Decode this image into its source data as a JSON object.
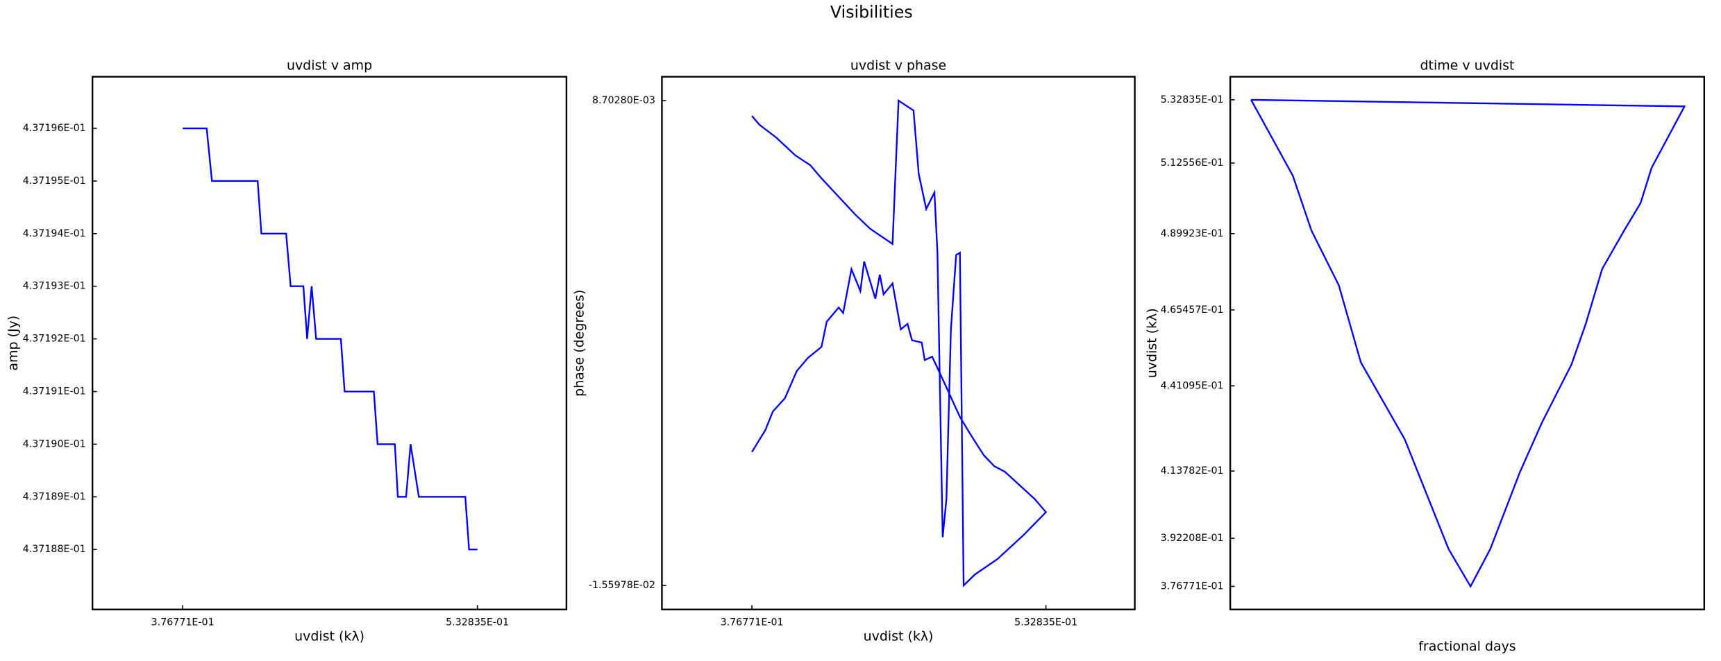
{
  "title": "Visibilities",
  "chart_data": [
    {
      "type": "line",
      "title": "uvdist v amp",
      "xlabel": "uvdist (kλ)",
      "ylabel": "amp (Jy)",
      "color": "#0000ff",
      "x": [
        0.37677,
        0.38948,
        0.39226,
        0.41647,
        0.41846,
        0.43156,
        0.43395,
        0.44069,
        0.44268,
        0.44506,
        0.44744,
        0.46054,
        0.46253,
        0.47801,
        0.47999,
        0.48912,
        0.49071,
        0.49508,
        0.49746,
        0.50183,
        0.52644,
        0.52842,
        0.53284
      ],
      "values": [
        0.437196,
        0.437196,
        0.437195,
        0.437195,
        0.437194,
        0.437194,
        0.437193,
        0.437193,
        0.437192,
        0.437193,
        0.437192,
        0.437192,
        0.437191,
        0.437191,
        0.43719,
        0.43719,
        0.437189,
        0.437189,
        0.43719,
        0.437189,
        0.437189,
        0.437188,
        0.437188
      ],
      "xlim": [
        0.329,
        0.58
      ],
      "xticks": [
        {
          "value": 0.376771,
          "label": "3.76771E-01"
        },
        {
          "value": 0.532835,
          "label": "5.32835E-01"
        }
      ],
      "ylim": [
        0.43718686,
        0.43719698
      ],
      "yticks": [
        {
          "value": 0.437188,
          "label": "4.37188E-01"
        },
        {
          "value": 0.437189,
          "label": "4.37189E-01"
        },
        {
          "value": 0.43719,
          "label": "4.37190E-01"
        },
        {
          "value": 0.437191,
          "label": "4.37191E-01"
        },
        {
          "value": 0.437192,
          "label": "4.37192E-01"
        },
        {
          "value": 0.437193,
          "label": "4.37193E-01"
        },
        {
          "value": 0.437194,
          "label": "4.37194E-01"
        },
        {
          "value": 0.437195,
          "label": "4.37195E-01"
        },
        {
          "value": 0.437196,
          "label": "4.37196E-01"
        }
      ]
    },
    {
      "type": "line",
      "title": "uvdist v phase",
      "xlabel": "uvdist (kλ)",
      "ylabel": "phase (degrees)",
      "color": "#0000ff",
      "x": [
        0.37677,
        0.38392,
        0.38789,
        0.39424,
        0.4006,
        0.40655,
        0.4137,
        0.41648,
        0.42284,
        0.42522,
        0.42959,
        0.43435,
        0.43634,
        0.44229,
        0.44467,
        0.44666,
        0.45142,
        0.45579,
        0.45937,
        0.46175,
        0.46691,
        0.4685,
        0.47247,
        0.47922,
        0.48717,
        0.49352,
        0.49987,
        0.50543,
        0.51099,
        0.52687,
        0.53284,
        0.52092,
        0.50702,
        0.49511,
        0.48915,
        0.48717,
        0.48518,
        0.4824,
        0.48002,
        0.47803,
        0.47525,
        0.47366,
        0.46929,
        0.46532,
        0.46254,
        0.4546,
        0.45142,
        0.43951,
        0.43157,
        0.4137,
        0.40774,
        0.3998,
        0.38987,
        0.38074,
        0.37677
      ],
      "values": [
        -0.008905,
        -0.007808,
        -0.006876,
        -0.006218,
        -0.004846,
        -0.004188,
        -0.003639,
        -0.002378,
        -0.001665,
        -0.001939,
        0.000255,
        -0.000842,
        0.000639,
        -0.001226,
        -1.9e-05,
        -0.001006,
        -0.000458,
        -0.002762,
        -0.002487,
        -0.00331,
        -0.00342,
        -0.004298,
        -0.004133,
        -0.005504,
        -0.00715,
        -0.008137,
        -0.00907,
        -0.009619,
        -0.009893,
        -0.011264,
        -0.011922,
        -0.013074,
        -0.014281,
        -0.015049,
        -0.015598,
        0.001078,
        0.000969,
        -0.002762,
        -0.011264,
        -0.013184,
        0.001078,
        0.004095,
        0.003272,
        0.005028,
        0.008209,
        0.0087028,
        0.001517,
        0.002285,
        0.002998,
        0.004808,
        0.005467,
        0.00596,
        0.006838,
        0.007496,
        0.007935
      ],
      "xlim": [
        0.329,
        0.58
      ],
      "xticks": [
        {
          "value": 0.376771,
          "label": "3.76771E-01"
        },
        {
          "value": 0.532835,
          "label": "5.32835E-01"
        }
      ],
      "ylim": [
        -0.0168,
        0.0099
      ],
      "yticks": [
        {
          "value": -0.0155978,
          "label": "-1.55978E-02"
        },
        {
          "value": 0.0087028,
          "label": "8.70280E-03"
        }
      ]
    },
    {
      "type": "line",
      "title": "dtime v uvdist",
      "xlabel": "fractional days",
      "ylabel": "uvdist (kλ)",
      "color": "#0000ff",
      "x": [
        0.11,
        0.189,
        0.183,
        0.181,
        0.178,
        0.174,
        0.171,
        0.1684,
        0.163,
        0.159,
        0.1536,
        0.15,
        0.146,
        0.142,
        0.138,
        0.13,
        0.126,
        0.121,
        0.1176,
        0.11
      ],
      "values": [
        0.532835,
        0.530721,
        0.510993,
        0.49972,
        0.490912,
        0.478582,
        0.460968,
        0.447933,
        0.429262,
        0.413409,
        0.388748,
        0.376771,
        0.388748,
        0.406363,
        0.423977,
        0.448638,
        0.473298,
        0.490912,
        0.508527,
        0.532835
      ],
      "xlim": [
        0.1062,
        0.1926
      ],
      "ylim": [
        0.369371,
        0.540235
      ],
      "yticks": [
        {
          "value": 0.376771,
          "label": "3.76771E-01"
        },
        {
          "value": 0.392208,
          "label": "3.92208E-01"
        },
        {
          "value": 0.413782,
          "label": "4.13782E-01"
        },
        {
          "value": 0.441095,
          "label": "4.41095E-01"
        },
        {
          "value": 0.465457,
          "label": "4.65457E-01"
        },
        {
          "value": 0.489923,
          "label": "4.89923E-01"
        },
        {
          "value": 0.512556,
          "label": "5.12556E-01"
        },
        {
          "value": 0.532835,
          "label": "5.32835E-01"
        }
      ]
    }
  ]
}
